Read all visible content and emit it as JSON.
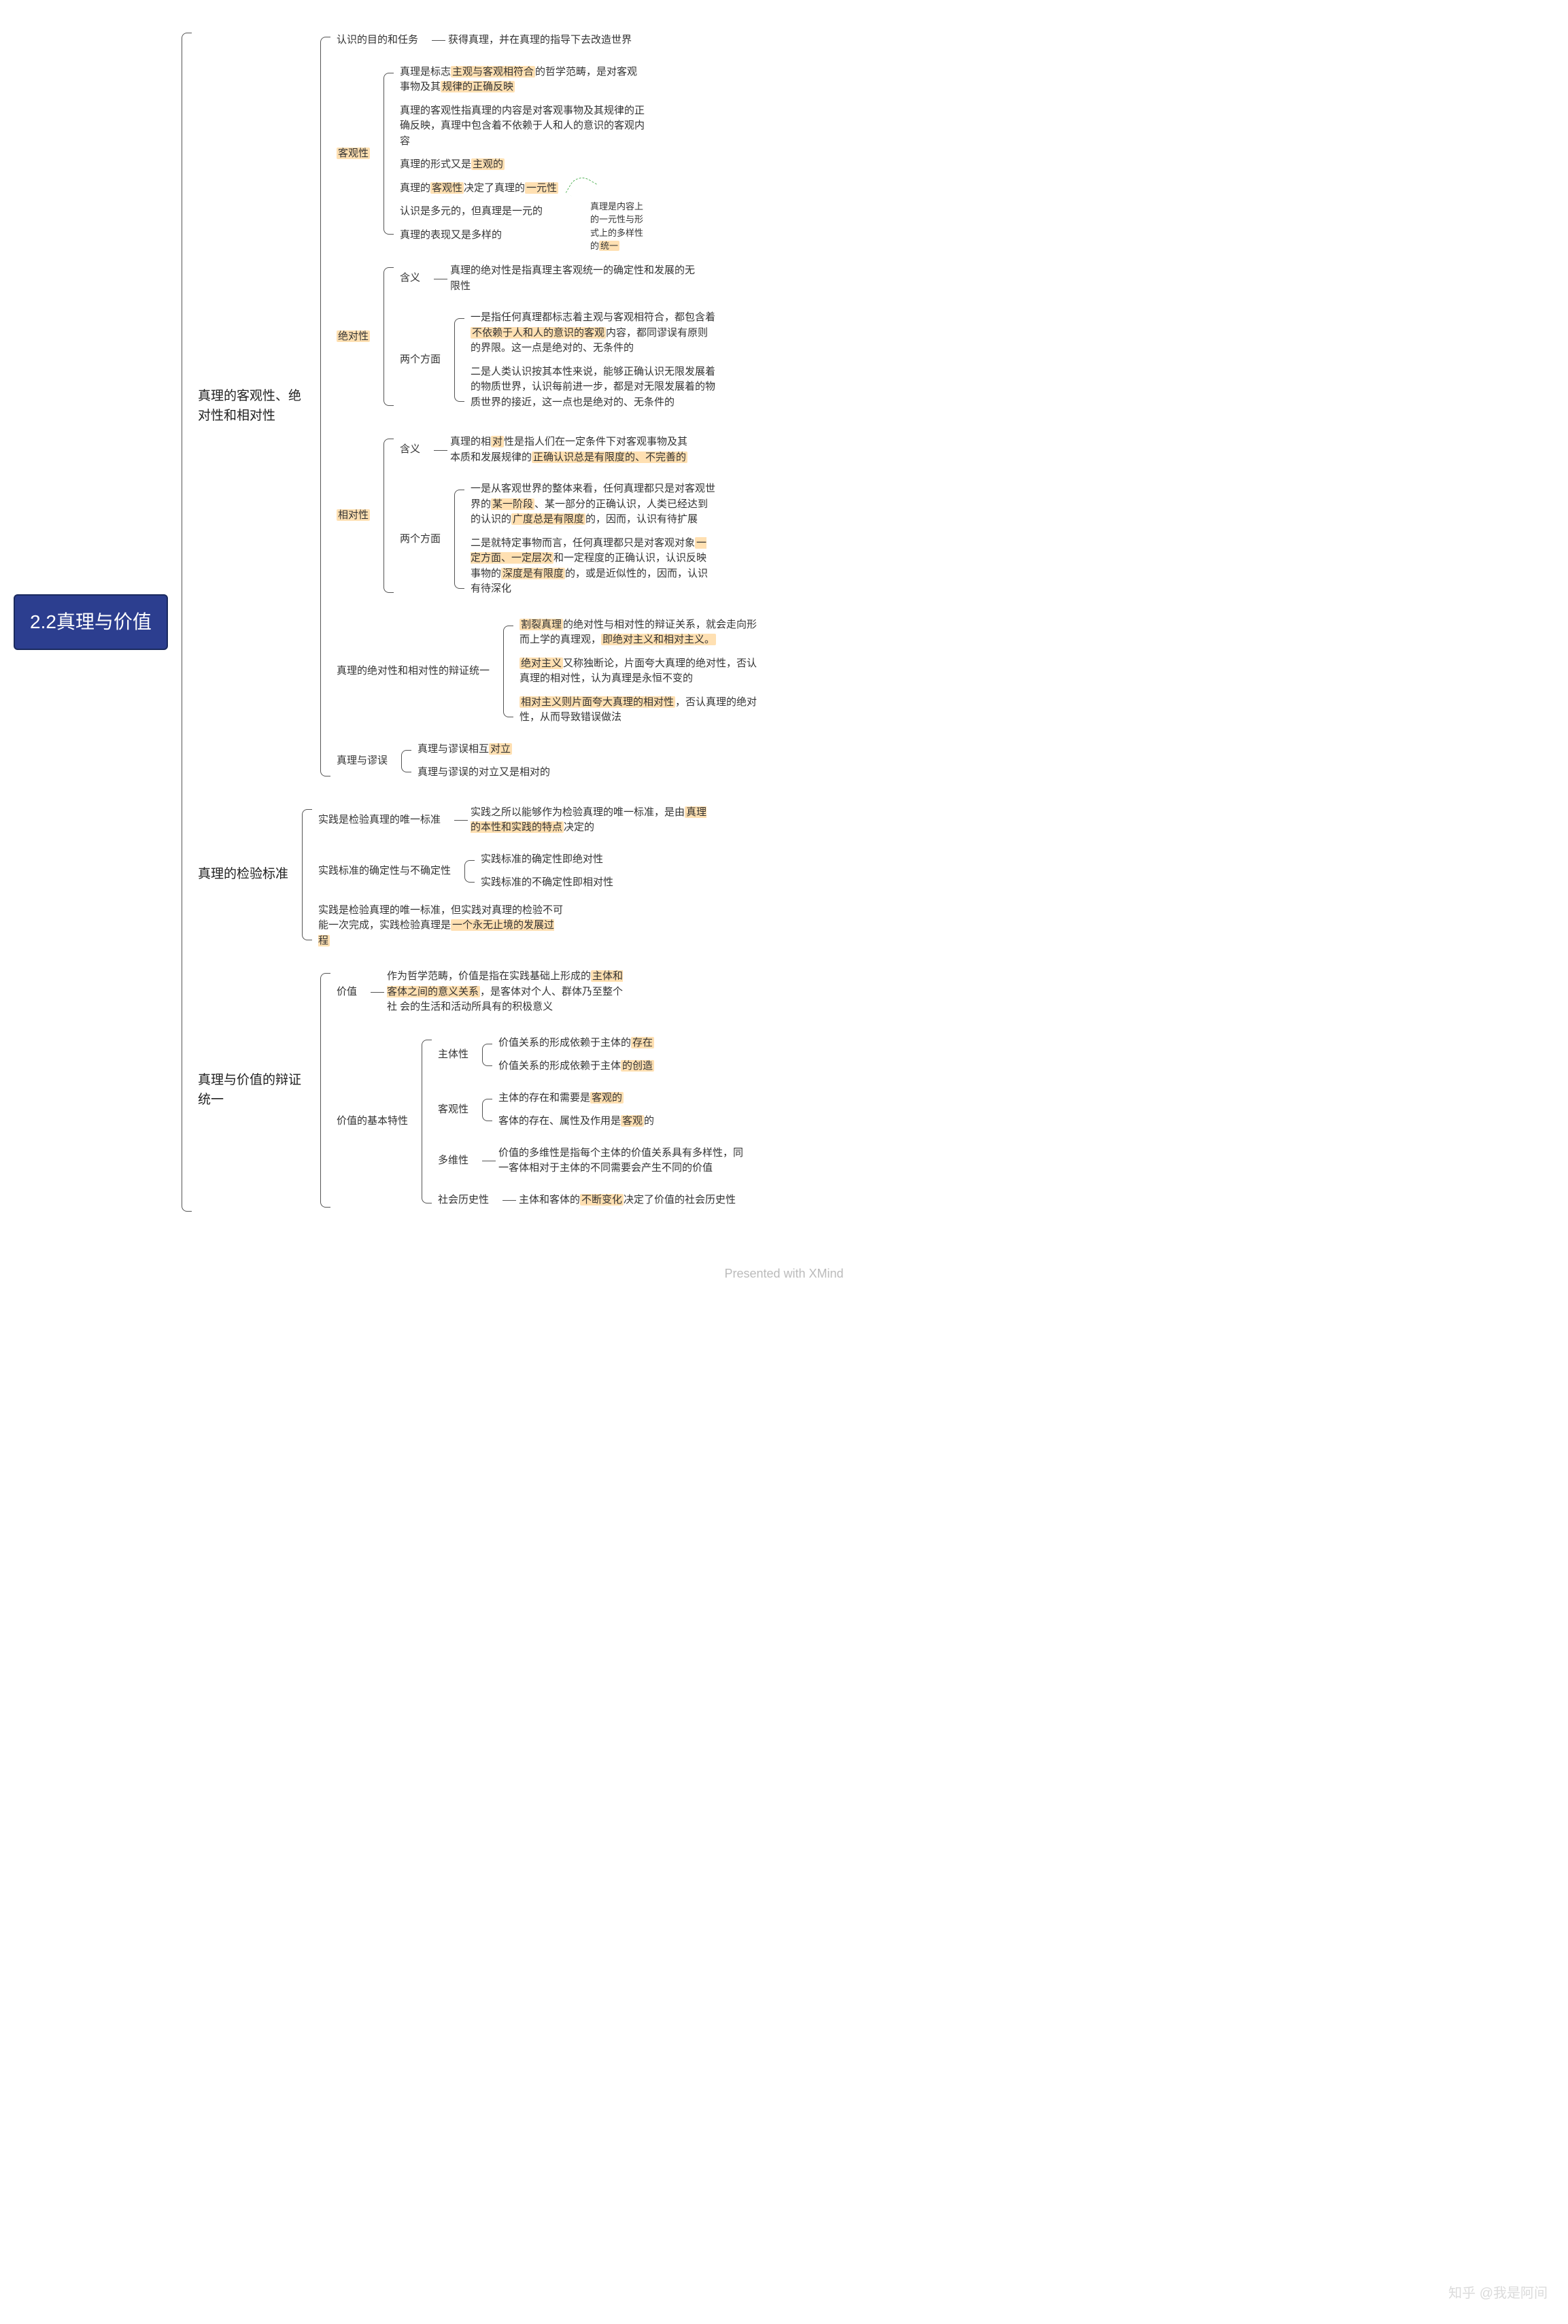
{
  "colors": {
    "root_bg": "#2c3e8f",
    "root_border": "#1a2a5e",
    "root_text": "#ffffff",
    "line": "#555555",
    "text": "#333333",
    "highlight_bg": "#ffe0b2",
    "note_border": "#4caf50",
    "footer_text": "#bbbbbb",
    "watermark_text": "#cccccc",
    "background": "#ffffff"
  },
  "typography": {
    "root_fontsize": 28,
    "level1_fontsize": 19,
    "node_fontsize": 15,
    "footer_fontsize": 18,
    "font_family": "Microsoft YaHei"
  },
  "layout": {
    "type": "mindmap-right",
    "direction": "left-to-right",
    "bracket_radius": 8,
    "node_vgap": 12,
    "level_hgap": 44
  },
  "root": "2.2真理与价值",
  "footer": "Presented with XMind",
  "watermark": "知乎 @我是阿间",
  "annotation": {
    "text": "真理是内容上的一元性与形式上的多样性的统一",
    "text_hl": "统一",
    "attached_near": "真理的客观性决定了真理的一元性"
  },
  "tree": [
    {
      "label": "真理的客观性、绝对性和相对性",
      "children": [
        {
          "label": "认识的目的和任务",
          "children": [
            {
              "leaf": "获得真理，并在真理的指导下去改造世界"
            }
          ]
        },
        {
          "label": "客观性",
          "hl": true,
          "children": [
            {
              "leaf": "真理是标志主观与客观相符合的哲学范畴，是对客观事物及其规律的正确反映",
              "hl_words": [
                "主观与客观相符合",
                "规律的正确反映"
              ]
            },
            {
              "leaf": "真理的客观性指真理的内容是对客观事物及其规律的正确反映，真理中包含着不依赖于人和人的意识的客观内容"
            },
            {
              "leaf": "真理的形式又是主观的",
              "hl_words": [
                "主观的"
              ]
            },
            {
              "leaf": "真理的客观性决定了真理的一元性",
              "hl_words": [
                "客观性",
                "一元性"
              ]
            },
            {
              "leaf": "认识是多元的，但真理是一元的"
            },
            {
              "leaf": "真理的表现又是多样的"
            }
          ]
        },
        {
          "label": "绝对性",
          "hl": true,
          "children": [
            {
              "label": "含义",
              "children": [
                {
                  "leaf": "真理的绝对性是指真理主客观统一的确定性和发展的无限性"
                }
              ]
            },
            {
              "label": "两个方面",
              "children": [
                {
                  "leaf": "一是指任何真理都标志着主观与客观相符合，都包含着不依赖于人和人的意识的客观内容，都同谬误有原则的界限。这一点是绝对的、无条件的",
                  "hl_words": [
                    "不依赖于人和人的意识的客观"
                  ]
                },
                {
                  "leaf": "二是人类认识按其本性来说，能够正确认识无限发展着的物质世界，认识每前进一步，都是对无限发展着的物质世界的接近，这一点也是绝对的、无条件的"
                }
              ]
            }
          ]
        },
        {
          "label": "相对性",
          "hl": true,
          "children": [
            {
              "label": "含义",
              "children": [
                {
                  "leaf": "真理的相对性是指人们在一定条件下对客观事物及其本质和发展规律的正确认识总是有限度的、不完善的",
                  "hl_words": [
                    "对",
                    "正确认识总是有限度的、不完善的"
                  ]
                }
              ]
            },
            {
              "label": "两个方面",
              "children": [
                {
                  "leaf": "一是从客观世界的整体来看，任何真理都只是对客观世界的某一阶段、某一部分的正确认识，人类已经达到的认识的广度总是有限度的，因而，认识有待扩展",
                  "hl_words": [
                    "某一阶段",
                    "广度总是有限度"
                  ]
                },
                {
                  "leaf": "二是就特定事物而言，任何真理都只是对客观对象一定方面、一定层次和一定程度的正确认识，认识反映事物的深度是有限度的，或是近似性的，因而，认识有待深化",
                  "hl_words": [
                    "一定方面、一定层次",
                    "深度是有限度"
                  ]
                }
              ]
            }
          ]
        },
        {
          "label": "真理的绝对性和相对性的辩证统一",
          "children": [
            {
              "leaf": "割裂真理的绝对性与相对性的辩证关系，就会走向形而上学的真理观，即绝对主义和相对主义。",
              "hl_words": [
                "割裂真理",
                "即绝对主义和相对主义。"
              ]
            },
            {
              "leaf": "绝对主义又称独断论，片面夸大真理的绝对性，否认真理的相对性，认为真理是永恒不变的",
              "hl_words": [
                "绝对主义"
              ]
            },
            {
              "leaf": "相对主义则片面夸大真理的相对性，否认真理的绝对性，从而导致错误做法",
              "hl_words": [
                "相对主义则片面夸大真理的相对性"
              ]
            }
          ]
        },
        {
          "label": "真理与谬误",
          "children": [
            {
              "leaf": "真理与谬误相互对立",
              "hl_words": [
                "对立"
              ]
            },
            {
              "leaf": "真理与谬误的对立又是相对的"
            }
          ]
        }
      ]
    },
    {
      "label": "真理的检验标准",
      "children": [
        {
          "label": "实践是检验真理的唯一标准",
          "children": [
            {
              "leaf": "实践之所以能够作为检验真理的唯一标准，是由真理的本性和实践的特点决定的",
              "hl_words": [
                "真理的本性和实践的特点"
              ]
            }
          ]
        },
        {
          "label": "实践标准的确定性与不确定性",
          "children": [
            {
              "leaf": "实践标准的确定性即绝对性"
            },
            {
              "leaf": "实践标准的不确定性即相对性"
            }
          ]
        },
        {
          "leaf": "实践是检验真理的唯一标准，但实践对真理的检验不可能一次完成，实践检验真理是一个永无止境的发展过程",
          "hl_words": [
            "一个永无止境的发展过程"
          ]
        }
      ]
    },
    {
      "label": "真理与价值的辩证统一",
      "children": [
        {
          "label": "价值",
          "children": [
            {
              "leaf": "作为哲学范畴，价值是指在实践基础上形成的主体和客体之间的意义关系，是客体对个人、群体乃至整个社 会的生活和活动所具有的积极意义",
              "hl_words": [
                "主体和客体之间的意义关系"
              ]
            }
          ]
        },
        {
          "label": "价值的基本特性",
          "children": [
            {
              "label": "主体性",
              "children": [
                {
                  "leaf": "价值关系的形成依赖于主体的存在",
                  "hl_words": [
                    "存在"
                  ]
                },
                {
                  "leaf": "价值关系的形成依赖于主体的创造",
                  "hl_words": [
                    "的创造"
                  ]
                }
              ]
            },
            {
              "label": "客观性",
              "children": [
                {
                  "leaf": "主体的存在和需要是客观的",
                  "hl_words": [
                    "客观的"
                  ]
                },
                {
                  "leaf": "客体的存在、属性及作用是客观的",
                  "hl_words": [
                    "客观"
                  ]
                }
              ]
            },
            {
              "label": "多维性",
              "children": [
                {
                  "leaf": "价值的多维性是指每个主体的价值关系具有多样性，同一客体相对于主体的不同需要会产生不同的价值"
                }
              ]
            },
            {
              "label": "社会历史性",
              "children": [
                {
                  "leaf": "主体和客体的不断变化决定了价值的社会历史性",
                  "hl_words": [
                    "不断变化"
                  ]
                }
              ]
            }
          ]
        }
      ]
    }
  ]
}
